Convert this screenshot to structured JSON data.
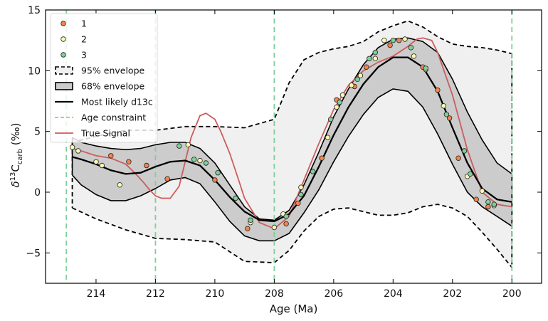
{
  "chart_data": {
    "type": "line",
    "xlabel": "Age (Ma)",
    "ylabel": {
      "pre": "δ",
      "sup": "13",
      "main": "C",
      "sub": "carb",
      "post": " (‰)"
    },
    "xlim": [
      215.7,
      199.0
    ],
    "ylim": [
      -7.5,
      15.0
    ],
    "x_ticks": [
      214,
      212,
      210,
      208,
      206,
      204,
      202,
      200
    ],
    "y_ticks": [
      -5,
      0,
      5,
      10,
      15
    ],
    "legend": {
      "placement": "top-left"
    },
    "colors": {
      "s1": "#f4844b",
      "s2": "#fafab4",
      "s3": "#7fcf9a",
      "envelope95_fill": "#f0f0f0",
      "envelope68_fill": "#cccccc",
      "true_signal": "#cd5c5c",
      "age_constraint_green": "#7fcf9a",
      "age_constraint_orange": "#f4a55a"
    },
    "series": [
      {
        "name": "1",
        "kind": "scatter",
        "points": [
          [
            213.5,
            3.0
          ],
          [
            212.9,
            2.5
          ],
          [
            212.3,
            2.2
          ],
          [
            211.6,
            1.1
          ],
          [
            210.0,
            1.0
          ],
          [
            208.9,
            -3.0
          ],
          [
            207.6,
            -2.6
          ],
          [
            207.2,
            -0.9
          ],
          [
            206.4,
            2.8
          ],
          [
            205.9,
            7.6
          ],
          [
            205.3,
            8.7
          ],
          [
            204.9,
            10.3
          ],
          [
            204.1,
            12.1
          ],
          [
            203.8,
            12.5
          ],
          [
            203.0,
            10.3
          ],
          [
            202.5,
            8.4
          ],
          [
            202.1,
            6.1
          ],
          [
            201.8,
            2.8
          ],
          [
            201.2,
            -0.6
          ],
          [
            200.8,
            -1.2
          ]
        ]
      },
      {
        "name": "2",
        "kind": "scatter",
        "points": [
          [
            214.8,
            3.7
          ],
          [
            214.6,
            3.4
          ],
          [
            214.0,
            2.5
          ],
          [
            213.8,
            2.2
          ],
          [
            213.2,
            0.6
          ],
          [
            210.9,
            3.9
          ],
          [
            210.5,
            2.6
          ],
          [
            208.8,
            -2.5
          ],
          [
            208.0,
            -2.9
          ],
          [
            207.7,
            -1.8
          ],
          [
            207.1,
            0.4
          ],
          [
            206.2,
            4.5
          ],
          [
            205.9,
            7.0
          ],
          [
            205.7,
            8.0
          ],
          [
            205.4,
            8.8
          ],
          [
            205.1,
            9.6
          ],
          [
            204.6,
            11.0
          ],
          [
            204.3,
            12.5
          ],
          [
            203.6,
            12.6
          ],
          [
            203.3,
            11.2
          ],
          [
            202.9,
            10.1
          ],
          [
            202.3,
            7.1
          ],
          [
            201.5,
            1.3
          ],
          [
            201.0,
            0.1
          ],
          [
            200.6,
            -1.1
          ]
        ]
      },
      {
        "name": "3",
        "kind": "scatter",
        "points": [
          [
            211.2,
            3.8
          ],
          [
            210.7,
            2.7
          ],
          [
            210.3,
            2.4
          ],
          [
            209.9,
            1.6
          ],
          [
            209.3,
            -0.5
          ],
          [
            208.8,
            -2.3
          ],
          [
            207.6,
            -2.0
          ],
          [
            207.1,
            -0.2
          ],
          [
            206.7,
            1.7
          ],
          [
            206.1,
            6.0
          ],
          [
            205.8,
            7.4
          ],
          [
            205.2,
            9.3
          ],
          [
            204.8,
            11.0
          ],
          [
            204.6,
            11.5
          ],
          [
            204.0,
            12.5
          ],
          [
            203.4,
            11.9
          ],
          [
            202.9,
            10.2
          ],
          [
            202.2,
            6.4
          ],
          [
            201.6,
            3.4
          ],
          [
            201.4,
            1.5
          ],
          [
            200.8,
            -0.8
          ],
          [
            200.6,
            -1.0
          ]
        ]
      },
      {
        "name": "95% envelope",
        "kind": "band",
        "x": [
          214.8,
          214,
          213,
          212,
          211,
          210,
          209,
          208,
          207.5,
          207,
          206.5,
          206,
          205.5,
          205,
          204.5,
          204,
          203.5,
          203,
          202.5,
          202,
          201.5,
          201,
          200.5,
          200
        ],
        "upper": [
          4.1,
          4.6,
          5.1,
          5.1,
          5.4,
          5.4,
          5.3,
          6.0,
          9.0,
          10.9,
          11.5,
          11.8,
          12.0,
          12.4,
          13.2,
          13.7,
          14.1,
          13.6,
          12.8,
          12.2,
          12.0,
          11.9,
          11.7,
          11.4
        ],
        "lower": [
          -1.3,
          -2.2,
          -3.1,
          -3.8,
          -3.9,
          -4.1,
          -5.7,
          -5.8,
          -4.8,
          -3.2,
          -2.0,
          -1.4,
          -1.3,
          -1.6,
          -1.9,
          -1.9,
          -1.7,
          -1.2,
          -1.0,
          -1.3,
          -2.0,
          -3.3,
          -4.7,
          -6.2
        ]
      },
      {
        "name": "68% envelope",
        "kind": "band",
        "x": [
          214.8,
          214.5,
          214,
          213.5,
          213,
          212.5,
          212,
          211.5,
          211,
          210.5,
          210,
          209.5,
          209,
          208.5,
          208,
          207.5,
          207,
          206.5,
          206,
          205.5,
          205,
          204.5,
          204,
          203.5,
          203,
          202.5,
          202,
          201.5,
          201,
          200.5,
          200
        ],
        "upper": [
          4.5,
          4.1,
          3.8,
          3.6,
          3.5,
          3.6,
          3.9,
          4.1,
          4.1,
          3.6,
          2.4,
          0.6,
          -1.2,
          -2.2,
          -2.3,
          -1.5,
          0.6,
          3.3,
          6.2,
          8.5,
          10.5,
          11.9,
          12.6,
          12.7,
          12.4,
          11.5,
          9.3,
          6.6,
          4.3,
          2.4,
          1.5
        ],
        "lower": [
          1.4,
          0.6,
          -0.2,
          -0.7,
          -0.7,
          -0.3,
          0.3,
          1.0,
          1.2,
          0.7,
          -0.8,
          -2.4,
          -3.6,
          -4.0,
          -4.0,
          -3.4,
          -1.7,
          0.2,
          2.5,
          4.6,
          6.4,
          7.8,
          8.5,
          8.3,
          7.0,
          4.8,
          2.3,
          0.0,
          -1.2,
          -2.0,
          -2.8
        ]
      },
      {
        "name": "Most likely d13c",
        "kind": "line",
        "x": [
          214.8,
          214.5,
          214,
          213.5,
          213,
          212.5,
          212,
          211.5,
          211,
          210.5,
          210,
          209.5,
          209,
          208.5,
          208,
          207.5,
          207,
          206.5,
          206,
          205.5,
          205,
          204.5,
          204,
          203.5,
          203,
          202.5,
          202,
          201.5,
          201,
          200.5,
          200
        ],
        "y": [
          2.9,
          2.7,
          2.3,
          1.8,
          1.5,
          1.6,
          2.1,
          2.5,
          2.6,
          2.2,
          1.0,
          -0.4,
          -1.6,
          -2.3,
          -2.4,
          -1.8,
          -0.3,
          2.1,
          4.7,
          7.0,
          8.9,
          10.3,
          11.1,
          11.1,
          10.3,
          8.3,
          5.3,
          2.4,
          0.3,
          -0.6,
          -0.8
        ]
      },
      {
        "name": "Age constraint",
        "kind": "vlines",
        "x": [
          215.0,
          212.0,
          208.0,
          200.0
        ]
      },
      {
        "name": "True Signal",
        "kind": "line",
        "x": [
          214.8,
          214.5,
          214,
          213.5,
          213,
          212.7,
          212.4,
          212.2,
          212,
          211.8,
          211.5,
          211.2,
          211,
          210.8,
          210.5,
          210.3,
          210,
          209.8,
          209.5,
          209.2,
          209,
          208.5,
          208,
          207.5,
          207,
          206.5,
          206,
          205.5,
          205,
          204.5,
          204,
          203.5,
          203.2,
          203,
          202.7,
          202.5,
          202,
          201.5,
          201,
          200.5,
          200
        ],
        "y": [
          3.6,
          3.4,
          3.0,
          2.8,
          2.3,
          1.6,
          0.8,
          0.2,
          -0.3,
          -0.5,
          -0.5,
          0.5,
          2.5,
          4.5,
          6.3,
          6.5,
          6.0,
          5.0,
          3.2,
          1.0,
          -0.5,
          -2.5,
          -3.0,
          -2.0,
          1.0,
          4.0,
          6.8,
          8.8,
          10.0,
          10.7,
          11.2,
          12.0,
          12.6,
          12.7,
          12.5,
          11.5,
          8.0,
          3.5,
          0.0,
          -1.0,
          -1.2
        ]
      }
    ]
  }
}
